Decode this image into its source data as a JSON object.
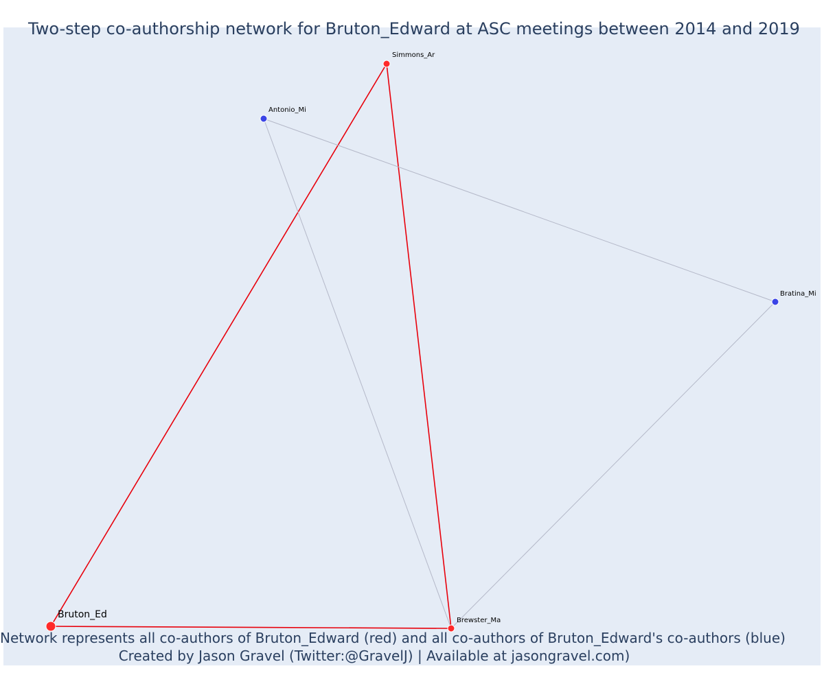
{
  "title": "Two-step co-authorship network for Bruton_Edward at ASC meetings between 2014 and 2019",
  "caption": {
    "line1": "Network represents all co-authors of Bruton_Edward (red) and all co-authors of Bruton_Edward's co-authors (blue)",
    "line2": "Created by Jason Gravel (Twitter:@GravelJ) | Available at jasongravel.com)"
  },
  "colors": {
    "background": "#e5ecf6",
    "first_degree": "#ff2a2a",
    "second_degree": "#3a44e6",
    "first_degree_edge": "#e8000b",
    "other_edge": "#b4b8c8",
    "text": "#2a3f5f"
  },
  "network": {
    "ego": "Bruton_Ed",
    "nodes": [
      {
        "id": "Bruton_Ed",
        "label": "Bruton_Ed",
        "group": "ego"
      },
      {
        "id": "Simmons_Ar",
        "label": "Simmons_Ar",
        "group": "first_degree"
      },
      {
        "id": "Brewster_Ma",
        "label": "Brewster_Ma",
        "group": "first_degree"
      },
      {
        "id": "Antonio_Mi",
        "label": "Antonio_Mi",
        "group": "second_degree"
      },
      {
        "id": "Bratina_Mi",
        "label": "Bratina_Mi",
        "group": "second_degree"
      }
    ],
    "edges": [
      {
        "source": "Bruton_Ed",
        "target": "Simmons_Ar",
        "type": "first_degree"
      },
      {
        "source": "Bruton_Ed",
        "target": "Brewster_Ma",
        "type": "first_degree"
      },
      {
        "source": "Simmons_Ar",
        "target": "Brewster_Ma",
        "type": "first_degree"
      },
      {
        "source": "Antonio_Mi",
        "target": "Brewster_Ma",
        "type": "other"
      },
      {
        "source": "Antonio_Mi",
        "target": "Bratina_Mi",
        "type": "other"
      },
      {
        "source": "Bratina_Mi",
        "target": "Brewster_Ma",
        "type": "other"
      }
    ]
  }
}
